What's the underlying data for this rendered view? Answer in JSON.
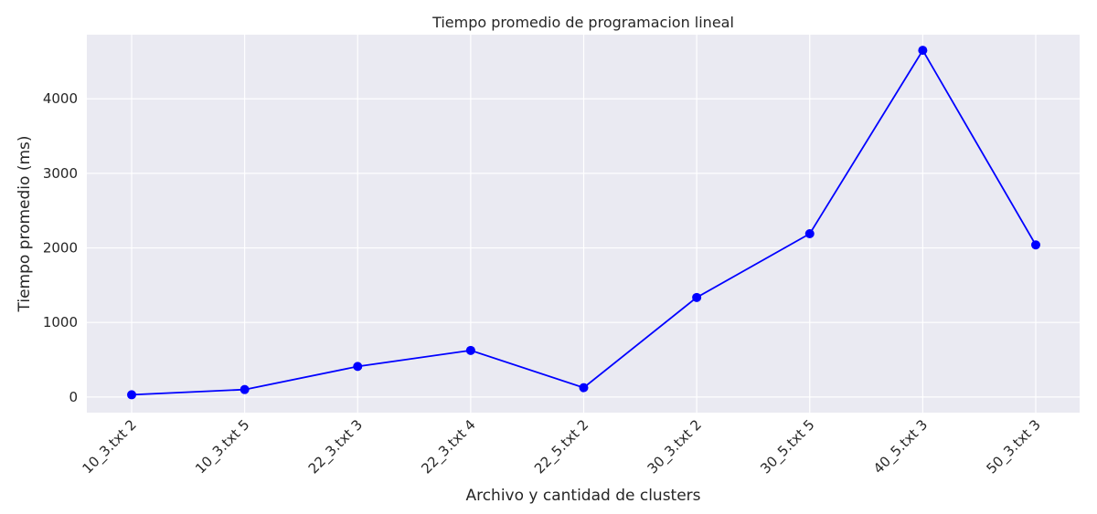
{
  "chart_data": {
    "type": "line",
    "title": "Tiempo promedio de programacion lineal",
    "xlabel": "Archivo y cantidad de clusters",
    "ylabel": "Tiempo promedio (ms)",
    "categories": [
      "10_3.txt 2",
      "10_3.txt 5",
      "22_3.txt 3",
      "22_3.txt 4",
      "22_5.txt 2",
      "30_3.txt 2",
      "30_5.txt 5",
      "40_5.txt 3",
      "50_3.txt 3"
    ],
    "series": [
      {
        "values": [
          30,
          100,
          410,
          625,
          125,
          1335,
          2190,
          4650,
          2040
        ],
        "color": "#0000ff"
      }
    ],
    "yticks": [
      0,
      1000,
      2000,
      3000,
      4000
    ],
    "ylim": [
      -210,
      4860
    ],
    "grid": true,
    "background": "#eaeaf2",
    "grid_color": "#ffffff"
  }
}
